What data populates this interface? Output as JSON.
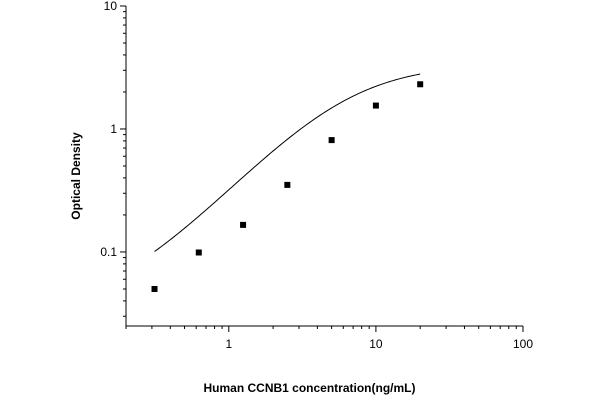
{
  "chart_data": {
    "type": "scatter",
    "title": "",
    "xlabel": "Human CCNB1 concentration(ng/mL)",
    "ylabel": "Optical Density",
    "x_scale": "log",
    "y_scale": "log",
    "xlim": [
      0.2,
      100
    ],
    "ylim": [
      0.025,
      10
    ],
    "x_ticks": [
      {
        "value": 1,
        "label": "1"
      },
      {
        "value": 10,
        "label": "10"
      },
      {
        "value": 100,
        "label": "100"
      }
    ],
    "y_ticks": [
      {
        "value": 0.1,
        "label": "0.1"
      },
      {
        "value": 1,
        "label": "1"
      },
      {
        "value": 10,
        "label": "10"
      }
    ],
    "grid": false,
    "legend": "none",
    "marker_color": "#000000",
    "curve_color": "#000000",
    "series": [
      {
        "points": [
          {
            "x": 0.3125,
            "y": 0.05
          },
          {
            "x": 0.625,
            "y": 0.099
          },
          {
            "x": 1.25,
            "y": 0.166
          },
          {
            "x": 2.5,
            "y": 0.351
          },
          {
            "x": 5,
            "y": 0.812
          },
          {
            "x": 10,
            "y": 1.55
          },
          {
            "x": 20,
            "y": 2.31
          }
        ],
        "fit": "4PL",
        "fit_params": {
          "A": 0.033,
          "D": 3.4,
          "C": 6.2,
          "B": 1.3
        }
      }
    ]
  }
}
